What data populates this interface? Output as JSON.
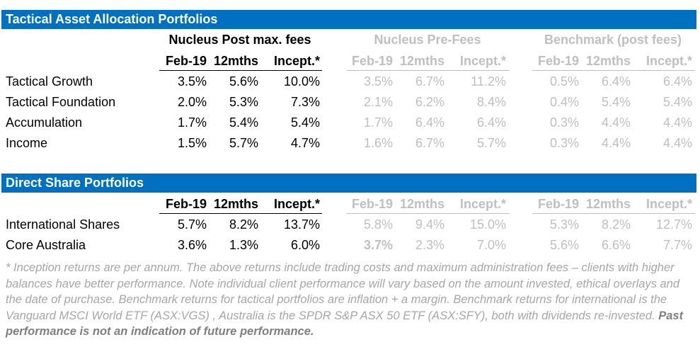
{
  "tactical": {
    "title": "Tactical Asset Allocation Portfolios",
    "groups": {
      "post": "Nucleus Post max. fees",
      "pre": "Nucleus Pre-Fees",
      "bench": "Benchmark (post fees)"
    },
    "cols": [
      "Feb-19",
      "12mths",
      "Incept.*"
    ],
    "rows": [
      {
        "name": "Tactical Growth",
        "post": [
          "3.5%",
          "5.6%",
          "10.0%"
        ],
        "pre": [
          "3.5%",
          "6.7%",
          "11.2%"
        ],
        "bench": [
          "0.5%",
          "6.4%",
          "6.4%"
        ]
      },
      {
        "name": "Tactical Foundation",
        "post": [
          "2.0%",
          "5.3%",
          "7.3%"
        ],
        "pre": [
          "2.1%",
          "6.2%",
          "8.4%"
        ],
        "bench": [
          "0.4%",
          "5.4%",
          "5.4%"
        ]
      },
      {
        "name": "Accumulation",
        "post": [
          "1.7%",
          "5.4%",
          "5.4%"
        ],
        "pre": [
          "1.7%",
          "6.4%",
          "6.4%"
        ],
        "bench": [
          "0.3%",
          "4.4%",
          "4.4%"
        ]
      },
      {
        "name": "Income",
        "post": [
          "1.5%",
          "5.7%",
          "4.7%"
        ],
        "pre": [
          "1.6%",
          "6.7%",
          "5.7%"
        ],
        "bench": [
          "0.3%",
          "4.4%",
          "4.4%"
        ]
      }
    ]
  },
  "direct": {
    "title": "Direct Share Portfolios",
    "cols": [
      "Feb-19",
      "12mths",
      "Incept.*"
    ],
    "rows": [
      {
        "name": "International Shares",
        "post": [
          "5.7%",
          "8.2%",
          "13.7%"
        ],
        "pre": [
          "5.8%",
          "9.4%",
          "15.0%"
        ],
        "bench": [
          "5.3%",
          "8.2%",
          "12.7%"
        ]
      },
      {
        "name": "Core Australia",
        "post": [
          "3.6%",
          "1.3%",
          "6.0%"
        ],
        "pre": [
          "3.7%",
          "2.3%",
          "7.0%"
        ],
        "bench": [
          "5.6%",
          "6.6%",
          "7.7%"
        ]
      }
    ]
  },
  "footnote": {
    "text": "* Inception returns are per annum. The above returns include trading costs and maximum administration fees  – clients with higher balances have better performance. Note individual client performance will vary based on the amount invested, ethical overlays and the date of purchase. Benchmark returns for tactical portfolios are inflation + a margin. Benchmark returns for international is the Vanguard MSCI World ETF (ASX:VGS) , Australia is the SPDR S&P ASX 50 ETF (ASX:SFY), both with dividends re-invested.",
    "emphasis": "Past performance is not an indication of future performance."
  },
  "colors": {
    "header_bar": "#0070C0",
    "muted": "#BFBFBF",
    "footnote": "#A6A6A6"
  }
}
